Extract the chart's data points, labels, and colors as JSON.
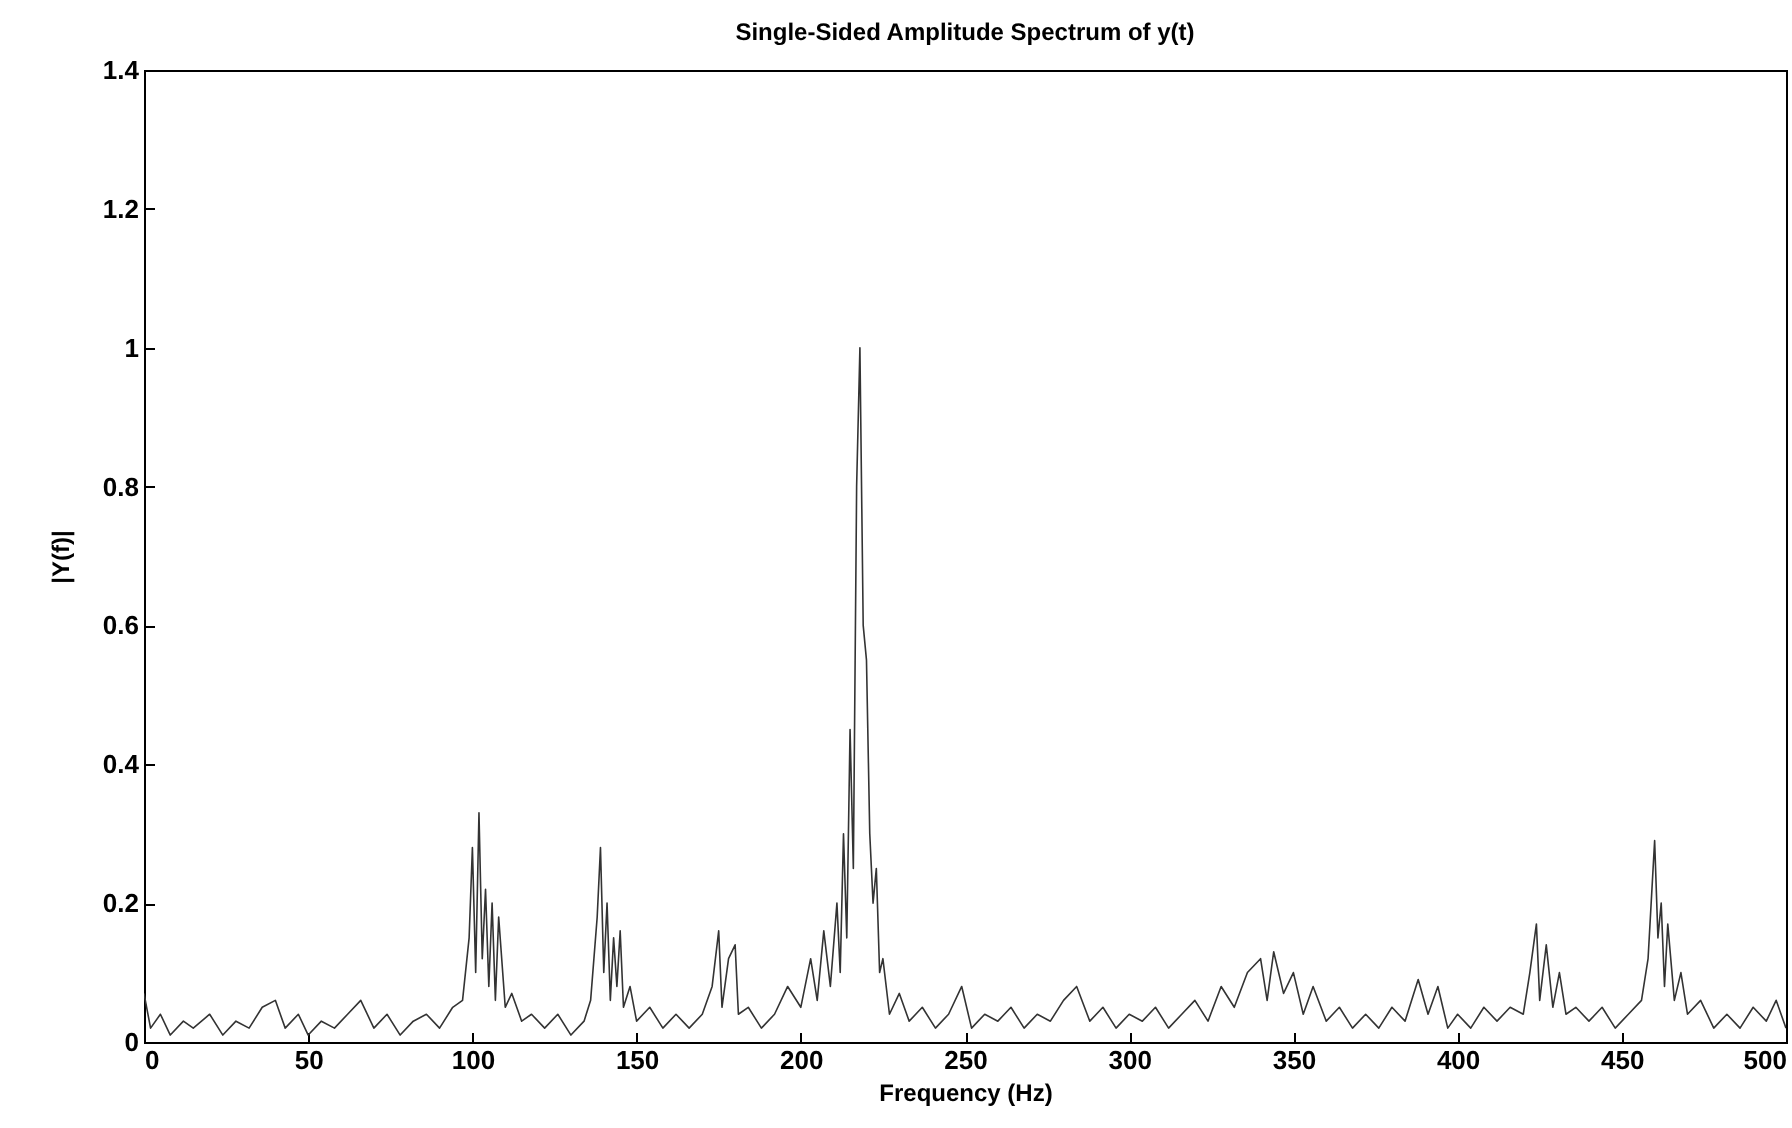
{
  "chart_data": {
    "type": "line",
    "title": "Single-Sided Amplitude Spectrum of y(t)",
    "xlabel": "Frequency (Hz)",
    "ylabel": "|Y(f)|",
    "xlim": [
      0,
      500
    ],
    "ylim": [
      0,
      1.4
    ],
    "xticks": [
      0,
      50,
      100,
      150,
      200,
      250,
      300,
      350,
      400,
      450,
      500
    ],
    "yticks": [
      0,
      0.2,
      0.4,
      0.6,
      0.8,
      1,
      1.2,
      1.4
    ],
    "grid": false,
    "legend": false,
    "line_style": "solid",
    "series": [
      {
        "color": "#333333",
        "x": [
          0,
          2,
          5,
          8,
          12,
          15,
          20,
          24,
          28,
          32,
          36,
          40,
          43,
          47,
          50,
          54,
          58,
          62,
          66,
          70,
          74,
          78,
          82,
          86,
          90,
          94,
          97,
          99,
          100,
          101,
          102,
          103,
          104,
          105,
          106,
          107,
          108,
          110,
          112,
          115,
          118,
          122,
          126,
          130,
          134,
          136,
          138,
          139,
          140,
          141,
          142,
          143,
          144,
          145,
          146,
          148,
          150,
          154,
          158,
          162,
          166,
          170,
          173,
          175,
          176,
          178,
          180,
          181,
          184,
          188,
          192,
          196,
          200,
          203,
          205,
          207,
          209,
          211,
          212,
          213,
          214,
          215,
          216,
          217,
          218,
          219,
          220,
          221,
          222,
          223,
          224,
          225,
          227,
          230,
          233,
          237,
          241,
          245,
          249,
          252,
          256,
          260,
          264,
          268,
          272,
          276,
          280,
          284,
          288,
          292,
          296,
          300,
          304,
          308,
          312,
          316,
          320,
          324,
          328,
          332,
          336,
          340,
          342,
          344,
          347,
          350,
          353,
          356,
          360,
          364,
          368,
          372,
          376,
          380,
          384,
          388,
          391,
          394,
          397,
          400,
          404,
          408,
          412,
          416,
          420,
          422,
          424,
          425,
          427,
          429,
          431,
          433,
          436,
          440,
          444,
          448,
          452,
          456,
          458,
          460,
          461,
          462,
          463,
          464,
          466,
          468,
          470,
          474,
          478,
          482,
          486,
          490,
          494,
          497,
          500
        ],
        "values": [
          0.07,
          0.02,
          0.04,
          0.01,
          0.03,
          0.02,
          0.04,
          0.01,
          0.03,
          0.02,
          0.05,
          0.06,
          0.02,
          0.04,
          0.01,
          0.03,
          0.02,
          0.04,
          0.06,
          0.02,
          0.04,
          0.01,
          0.03,
          0.04,
          0.02,
          0.05,
          0.06,
          0.15,
          0.28,
          0.1,
          0.33,
          0.12,
          0.22,
          0.08,
          0.2,
          0.06,
          0.18,
          0.05,
          0.07,
          0.03,
          0.04,
          0.02,
          0.04,
          0.01,
          0.03,
          0.06,
          0.18,
          0.28,
          0.1,
          0.2,
          0.06,
          0.15,
          0.08,
          0.16,
          0.05,
          0.08,
          0.03,
          0.05,
          0.02,
          0.04,
          0.02,
          0.04,
          0.08,
          0.16,
          0.05,
          0.12,
          0.14,
          0.04,
          0.05,
          0.02,
          0.04,
          0.08,
          0.05,
          0.12,
          0.06,
          0.16,
          0.08,
          0.2,
          0.1,
          0.3,
          0.15,
          0.45,
          0.25,
          0.8,
          1.0,
          0.6,
          0.55,
          0.3,
          0.2,
          0.25,
          0.1,
          0.12,
          0.04,
          0.07,
          0.03,
          0.05,
          0.02,
          0.04,
          0.08,
          0.02,
          0.04,
          0.03,
          0.05,
          0.02,
          0.04,
          0.03,
          0.06,
          0.08,
          0.03,
          0.05,
          0.02,
          0.04,
          0.03,
          0.05,
          0.02,
          0.04,
          0.06,
          0.03,
          0.08,
          0.05,
          0.1,
          0.12,
          0.06,
          0.13,
          0.07,
          0.1,
          0.04,
          0.08,
          0.03,
          0.05,
          0.02,
          0.04,
          0.02,
          0.05,
          0.03,
          0.09,
          0.04,
          0.08,
          0.02,
          0.04,
          0.02,
          0.05,
          0.03,
          0.05,
          0.04,
          0.1,
          0.17,
          0.06,
          0.14,
          0.05,
          0.1,
          0.04,
          0.05,
          0.03,
          0.05,
          0.02,
          0.04,
          0.06,
          0.12,
          0.29,
          0.15,
          0.2,
          0.08,
          0.17,
          0.06,
          0.1,
          0.04,
          0.06,
          0.02,
          0.04,
          0.02,
          0.05,
          0.03,
          0.06,
          0.02
        ]
      }
    ]
  }
}
